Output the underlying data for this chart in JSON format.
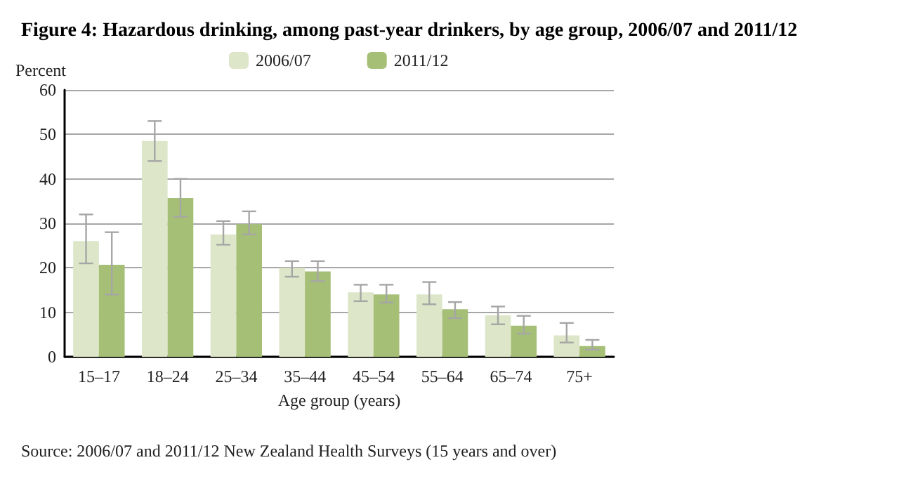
{
  "chart_data": {
    "type": "bar",
    "title": "Figure 4: Hazardous drinking, among past-year drinkers, by age group, 2006/07 and 2011/12",
    "ylabel": "Percent",
    "xlabel": "Age group (years)",
    "categories": [
      "15–17",
      "18–24",
      "25–34",
      "35–44",
      "45–54",
      "55–64",
      "65–74",
      "75+"
    ],
    "series": [
      {
        "name": "2006/07",
        "color": "#dde6c8",
        "values": [
          26,
          48.5,
          27.5,
          20,
          14.5,
          14,
          9.3,
          4.8
        ],
        "errors": [
          [
            21,
            32
          ],
          [
            44,
            53
          ],
          [
            25.2,
            30.5
          ],
          [
            18,
            21.5
          ],
          [
            12.5,
            16.2
          ],
          [
            11.8,
            16.8
          ],
          [
            7.3,
            11.3
          ],
          [
            3.2,
            7.6
          ]
        ]
      },
      {
        "name": "2011/12",
        "color": "#a5bf76",
        "values": [
          20.7,
          35.7,
          29.8,
          19.2,
          14,
          10.7,
          7,
          2.4
        ],
        "errors": [
          [
            14,
            28
          ],
          [
            31.5,
            40
          ],
          [
            27.5,
            32.7
          ],
          [
            17,
            21.5
          ],
          [
            12.2,
            16.2
          ],
          [
            8.7,
            12.3
          ],
          [
            5.2,
            9.2
          ],
          [
            1.6,
            3.8
          ]
        ]
      }
    ],
    "ylim": [
      0,
      60
    ],
    "yticks": [
      0,
      10,
      20,
      30,
      40,
      50,
      60
    ],
    "grid": "y",
    "legend": "top",
    "annotations": [
      "Source: 2006/07 and 2011/12 New Zealand Health Surveys (15 years and over)"
    ]
  }
}
